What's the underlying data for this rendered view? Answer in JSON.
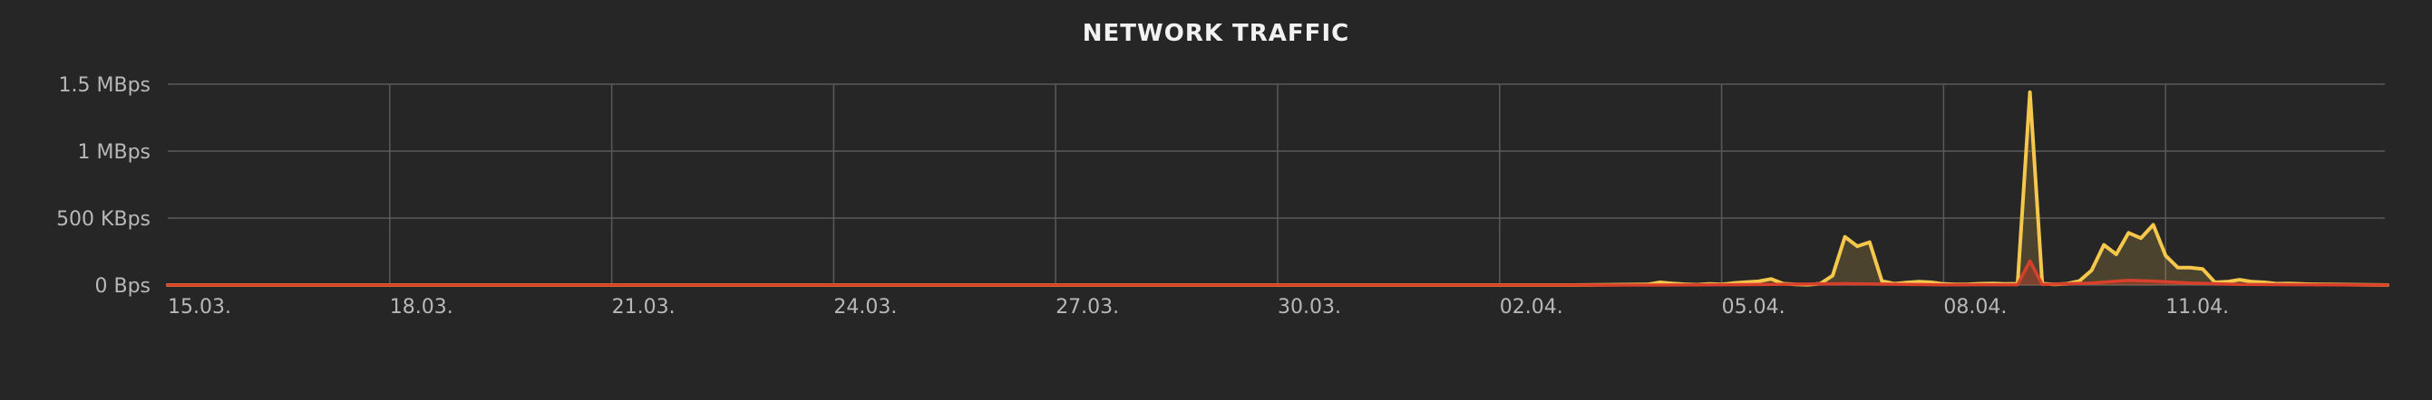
{
  "chart_data": {
    "type": "area",
    "title": "NETWORK TRAFFIC",
    "xlabel": "",
    "ylabel": "",
    "y_unit": "Bps",
    "ylim": [
      0,
      1500000
    ],
    "y_ticks": [
      {
        "value": 0,
        "label": "0 Bps"
      },
      {
        "value": 500000,
        "label": "500 KBps"
      },
      {
        "value": 1000000,
        "label": "1 MBps"
      },
      {
        "value": 1500000,
        "label": "1.5 MBps"
      }
    ],
    "x_ticks": [
      "15.03.",
      "18.03.",
      "21.03.",
      "24.03.",
      "27.03.",
      "30.03.",
      "02.04.",
      "05.04.",
      "08.04.",
      "11.04."
    ],
    "x_start": "15.03.",
    "x_end": "14.04.",
    "grid": true,
    "legend": "none",
    "colors": {
      "background": "#262626",
      "grid": "#5a5a5a",
      "series_received": "#f5c84c",
      "series_sent": "#d9402b"
    },
    "series": [
      {
        "color": "#f5c84c",
        "points": [
          [
            "15.03.",
            0
          ],
          [
            "16.03.",
            0
          ],
          [
            "17.03.",
            0
          ],
          [
            "18.03.",
            0
          ],
          [
            "19.03.",
            0
          ],
          [
            "20.03.",
            0
          ],
          [
            "21.03.",
            0
          ],
          [
            "22.03.",
            0
          ],
          [
            "23.03.",
            0
          ],
          [
            "24.03.",
            0
          ],
          [
            "25.03.",
            0
          ],
          [
            "26.03.",
            0
          ],
          [
            "27.03.",
            0
          ],
          [
            "28.03.",
            0
          ],
          [
            "29.03.",
            0
          ],
          [
            "30.03.",
            0
          ],
          [
            "31.03.",
            0
          ],
          [
            "01.04.",
            0
          ],
          [
            "02.04.",
            0
          ],
          [
            "03.04.",
            0
          ],
          [
            "04.04. 00h",
            5000
          ],
          [
            "04.04. 04h",
            20000
          ],
          [
            "04.04. 08h",
            12000
          ],
          [
            "04.04. 12h",
            6000
          ],
          [
            "04.04. 16h",
            3000
          ],
          [
            "04.04. 20h",
            8000
          ],
          [
            "05.04. 00h",
            5000
          ],
          [
            "05.04. 04h",
            15000
          ],
          [
            "05.04. 08h",
            22000
          ],
          [
            "05.04. 12h",
            28000
          ],
          [
            "05.04. 16h",
            45000
          ],
          [
            "05.04. 20h",
            10000
          ],
          [
            "06.04. 00h",
            5000
          ],
          [
            "06.04. 04h",
            3000
          ],
          [
            "06.04. 08h",
            10000
          ],
          [
            "06.04. 12h",
            70000
          ],
          [
            "06.04. 16h",
            360000
          ],
          [
            "06.04. 20h",
            290000
          ],
          [
            "07.04. 00h",
            320000
          ],
          [
            "07.04. 04h",
            30000
          ],
          [
            "07.04. 08h",
            10000
          ],
          [
            "07.04. 12h",
            18000
          ],
          [
            "07.04. 16h",
            25000
          ],
          [
            "07.04. 20h",
            20000
          ],
          [
            "08.04. 00h",
            8000
          ],
          [
            "08.04. 04h",
            5000
          ],
          [
            "08.04. 08h",
            6000
          ],
          [
            "08.04. 12h",
            10000
          ],
          [
            "08.04. 16h",
            12000
          ],
          [
            "08.04. 20h",
            8000
          ],
          [
            "09.04. 00h",
            10000
          ],
          [
            "09.04. 04h",
            1440000
          ],
          [
            "09.04. 08h",
            10000
          ],
          [
            "09.04. 12h",
            5000
          ],
          [
            "09.04. 16h",
            10000
          ],
          [
            "09.04. 20h",
            30000
          ],
          [
            "10.04. 00h",
            110000
          ],
          [
            "10.04. 04h",
            300000
          ],
          [
            "10.04. 08h",
            230000
          ],
          [
            "10.04. 12h",
            390000
          ],
          [
            "10.04. 16h",
            350000
          ],
          [
            "10.04. 20h",
            450000
          ],
          [
            "11.04. 00h",
            220000
          ],
          [
            "11.04. 04h",
            130000
          ],
          [
            "11.04. 08h",
            130000
          ],
          [
            "11.04. 12h",
            120000
          ],
          [
            "11.04. 16h",
            20000
          ],
          [
            "11.04. 20h",
            25000
          ],
          [
            "12.04. 00h",
            40000
          ],
          [
            "12.04. 04h",
            25000
          ],
          [
            "12.04. 08h",
            20000
          ],
          [
            "12.04. 12h",
            10000
          ],
          [
            "12.04. 16h",
            12000
          ],
          [
            "12.04. 20h",
            8000
          ],
          [
            "13.04.",
            6000
          ],
          [
            "14.04.",
            0
          ]
        ]
      },
      {
        "color": "#d9402b",
        "points": [
          [
            "15.03.",
            0
          ],
          [
            "04.04.",
            0
          ],
          [
            "05.04. 12h",
            4000
          ],
          [
            "06.04. 16h",
            10000
          ],
          [
            "07.04. 00h",
            8000
          ],
          [
            "08.04. 00h",
            2000
          ],
          [
            "09.04. 00h",
            3000
          ],
          [
            "09.04. 04h",
            180000
          ],
          [
            "09.04. 08h",
            4000
          ],
          [
            "10.04. 00h",
            15000
          ],
          [
            "10.04. 12h",
            35000
          ],
          [
            "10.04. 20h",
            30000
          ],
          [
            "11.04. 08h",
            15000
          ],
          [
            "12.04. 00h",
            5000
          ],
          [
            "14.04.",
            0
          ]
        ]
      }
    ]
  }
}
